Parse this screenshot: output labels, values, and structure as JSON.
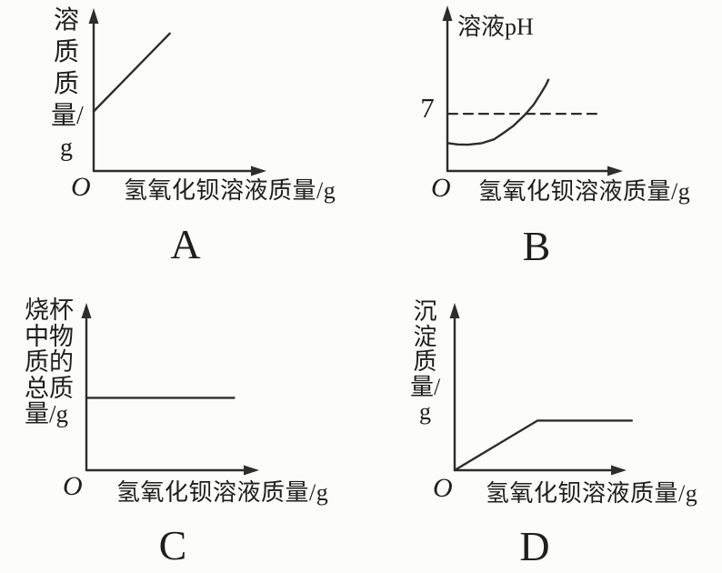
{
  "figure": {
    "background": "#fcfcfa",
    "ink": "#2d2d2d",
    "description": "Four multiple-choice chemistry graphs (A, B, C, D), each plotting a quantity versus mass of barium hydroxide solution added"
  },
  "charts": {
    "A": {
      "option_label": "A",
      "y_label": "溶质质量/g",
      "x_label": "氢氧化钡溶液质量/g",
      "origin_label": "O"
    },
    "B": {
      "option_label": "B",
      "y_label": "溶液pH",
      "x_label": "氢氧化钡溶液质量/g",
      "origin_label": "O",
      "reference_tick": "7"
    },
    "C": {
      "option_label": "C",
      "y_label": "烧杯中物质的总质量/g",
      "x_label": "氢氧化钡溶液质量/g",
      "origin_label": "O"
    },
    "D": {
      "option_label": "D",
      "y_label": "沉淀质量/g",
      "x_label": "氢氧化钡溶液质量/g",
      "origin_label": "O"
    }
  },
  "chart_data": [
    {
      "id": "A",
      "type": "line",
      "title": "A",
      "xlabel": "氢氧化钡溶液质量/g",
      "ylabel": "溶质质量/g",
      "axes_numeric": false,
      "x_range_norm": [
        0,
        1
      ],
      "y_range_norm": [
        0,
        1
      ],
      "grid": false,
      "series": [
        {
          "name": "溶质质量",
          "points_norm": [
            [
              0,
              0.39
            ],
            [
              0.45,
              0.9
            ]
          ],
          "shape": "straight rising line starting on the y-axis above the origin"
        }
      ]
    },
    {
      "id": "B",
      "type": "line",
      "title": "B",
      "xlabel": "氢氧化钡溶液质量/g",
      "ylabel": "溶液pH",
      "axes_numeric": false,
      "grid": false,
      "reference_line": {
        "label": "7",
        "y_norm": 0.37,
        "x_start_norm": 0.005,
        "x_extent_norm": 0.895,
        "style": "dashed"
      },
      "series": [
        {
          "name": "溶液pH",
          "points_norm": [
            [
              0.005,
              0.18
            ],
            [
              0.06,
              0.172
            ],
            [
              0.12,
              0.17
            ],
            [
              0.2,
              0.18
            ],
            [
              0.27,
              0.205
            ],
            [
              0.33,
              0.25
            ],
            [
              0.38,
              0.29
            ],
            [
              0.45,
              0.365
            ],
            [
              0.5,
              0.43
            ],
            [
              0.54,
              0.5
            ],
            [
              0.57,
              0.555
            ],
            [
              0.585,
              0.59
            ]
          ],
          "shape": "starts below pH 7, nearly flat, then curves steeply upward crossing the dashed pH 7 line"
        }
      ]
    },
    {
      "id": "C",
      "type": "line",
      "title": "C",
      "xlabel": "氢氧化钡溶液质量/g",
      "ylabel": "烧杯中物质的总质量/g",
      "axes_numeric": false,
      "grid": false,
      "series": [
        {
          "name": "烧杯中物质的总质量",
          "points_norm": [
            [
              0,
              0.45
            ],
            [
              0.86,
              0.45
            ]
          ],
          "shape": "horizontal line at constant height starting on the y-axis"
        }
      ]
    },
    {
      "id": "D",
      "type": "line",
      "title": "D",
      "xlabel": "氢氧化钡溶液质量/g",
      "ylabel": "沉淀质量/g",
      "axes_numeric": false,
      "grid": false,
      "series": [
        {
          "name": "沉淀质量",
          "points_norm": [
            [
              0,
              0
            ],
            [
              0.48,
              0.3
            ],
            [
              1.025,
              0.3
            ]
          ],
          "shape": "rises linearly from the origin then plateaus horizontally"
        }
      ]
    }
  ]
}
